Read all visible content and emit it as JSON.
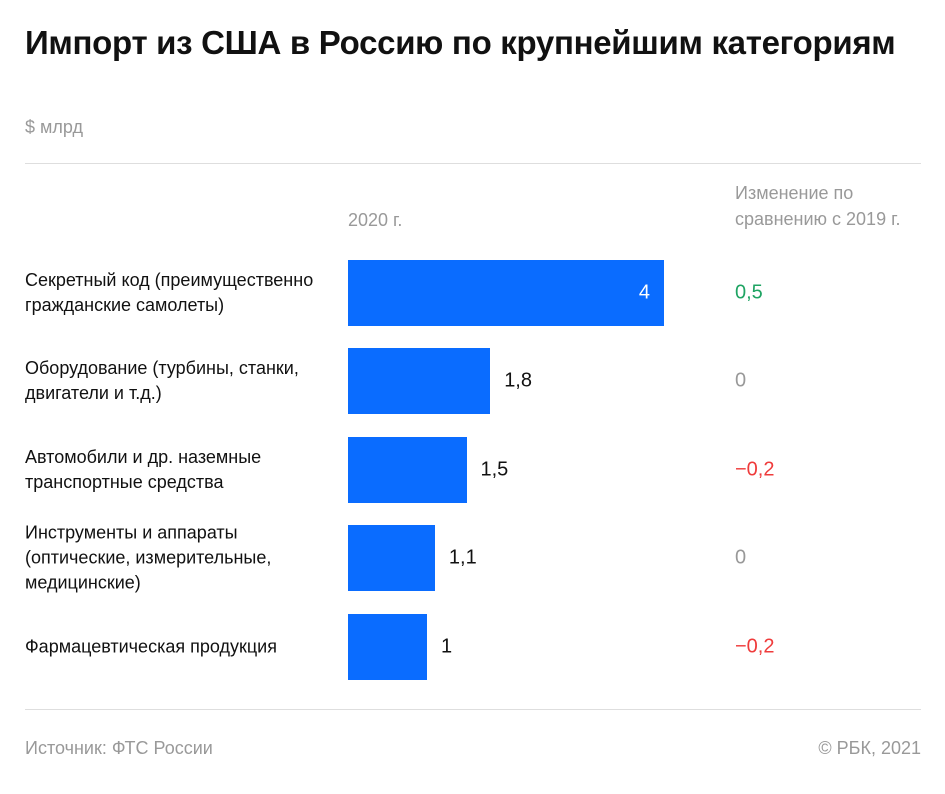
{
  "header": {
    "title": "Импорт из США в Россию по крупнейшим категориям",
    "subtitle": "$ млрд"
  },
  "columns": {
    "year_label": "2020 г.",
    "change_label": "Изменение по сравнению с 2019 г."
  },
  "chart_data": {
    "type": "bar",
    "orientation": "horizontal",
    "title": "Импорт из США в Россию по крупнейшим категориям",
    "subtitle": "$ млрд",
    "categories": [
      "Секретный код (преимущественно гражданские самолеты)",
      "Оборудование (турбины, станки, двигатели и т.д.)",
      "Автомобили и др. наземные транспортные средства",
      "Инструменты и аппараты (оптические, измерительные, медицинские)",
      "Фармацевтическая продукция"
    ],
    "series": [
      {
        "name": "2020 г.",
        "values": [
          4,
          1.8,
          1.5,
          1.1,
          1
        ]
      },
      {
        "name": "Изменение по сравнению с 2019 г.",
        "values": [
          0.5,
          0,
          -0.2,
          0,
          -0.2
        ]
      }
    ],
    "value_labels": [
      "4",
      "1,8",
      "1,5",
      "1,1",
      "1"
    ],
    "change_labels": [
      "0,5",
      "0",
      "−0,2",
      "0",
      "−0,2"
    ],
    "xlim": [
      0,
      4
    ],
    "grid": false,
    "legend": "none",
    "colors": {
      "bar": "#0a6cff",
      "positive": "#1fa463",
      "negative": "#ef3b3b",
      "neutral": "#999999"
    }
  },
  "footer": {
    "source": "Источник:  ФТС России",
    "copyright": "©  РБК, 2021"
  }
}
